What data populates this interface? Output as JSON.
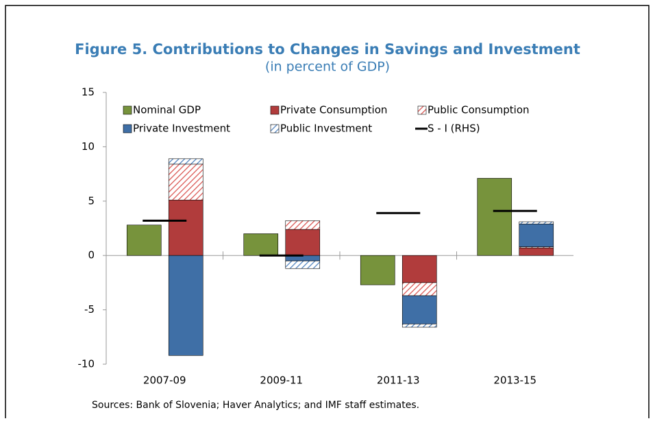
{
  "chart_data": {
    "type": "bar",
    "title": "Figure 5. Contributions to Changes in Savings and Investment",
    "subtitle": "(in percent of GDP)",
    "source": "Sources: Bank of Slovenia; Haver Analytics; and IMF staff estimates.",
    "categories": [
      "2007-09",
      "2009-11",
      "2011-13",
      "2013-15"
    ],
    "series": [
      {
        "name": "Nominal GDP",
        "color": "#77933c",
        "values": [
          2.8,
          2.0,
          -2.7,
          7.1
        ]
      },
      {
        "name": "Private Consumption",
        "color": "#b13c3c",
        "stack": true,
        "values": [
          5.1,
          2.4,
          -2.5,
          0.7
        ]
      },
      {
        "name": "Public Consumption",
        "color": "#d9534f",
        "stack": true,
        "hatch": true,
        "values": [
          3.3,
          0.8,
          -1.2,
          0.1
        ]
      },
      {
        "name": "Private Investment",
        "color": "#3f6fa6",
        "stack": true,
        "values": [
          -9.2,
          -0.5,
          -2.6,
          2.1
        ]
      },
      {
        "name": "Public Investment",
        "color": "#4f81bd",
        "stack": true,
        "hatch": true,
        "values": [
          0.5,
          -0.7,
          -0.3,
          0.2
        ]
      },
      {
        "name": "S - I (RHS)",
        "color": "#000000",
        "mark": "dash",
        "values": [
          3.2,
          0.0,
          3.9,
          4.1
        ]
      }
    ],
    "ylim": [
      -10,
      15
    ],
    "yticks": [
      -10,
      -5,
      0,
      5,
      10,
      15
    ]
  }
}
